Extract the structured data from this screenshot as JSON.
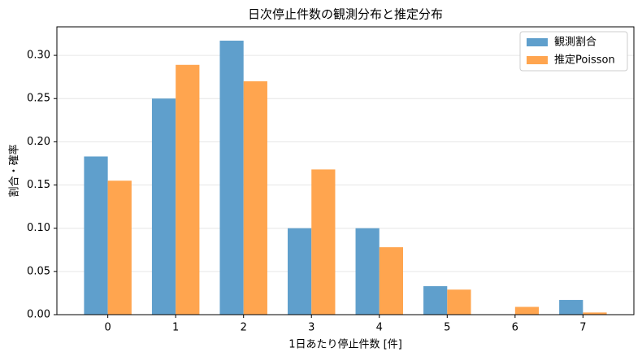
{
  "chart_data": {
    "type": "bar",
    "title": "日次停止件数の観測分布と推定分布",
    "x_label": "1日あたり停止件数 [件]",
    "y_label": "割合・確率",
    "x": [
      0,
      1,
      2,
      3,
      4,
      5,
      6,
      7
    ],
    "series": [
      {
        "name": "観測割合",
        "color": "#5f9fcc",
        "values": [
          0.183,
          0.25,
          0.317,
          0.1,
          0.1,
          0.033,
          0,
          0.017
        ]
      },
      {
        "name": "推定Poisson",
        "color": "#ffa54f",
        "values": [
          0.155,
          0.289,
          0.27,
          0.168,
          0.078,
          0.029,
          0.009,
          0.0025
        ]
      }
    ],
    "xlim": [
      -0.75,
      7.75
    ],
    "xticks": [
      0,
      1,
      2,
      3,
      4,
      5,
      6,
      7
    ],
    "ylim": [
      0,
      0.333
    ],
    "yticks": [
      {
        "value": 0,
        "label": "0.00"
      },
      {
        "value": 0.05,
        "label": "0.05"
      },
      {
        "value": 0.1,
        "label": "0.10"
      },
      {
        "value": 0.15,
        "label": "0.15"
      },
      {
        "value": 0.2,
        "label": "0.20"
      },
      {
        "value": 0.25,
        "label": "0.25"
      },
      {
        "value": 0.3,
        "label": "0.30"
      }
    ],
    "grid": true,
    "legend": "upper right"
  }
}
